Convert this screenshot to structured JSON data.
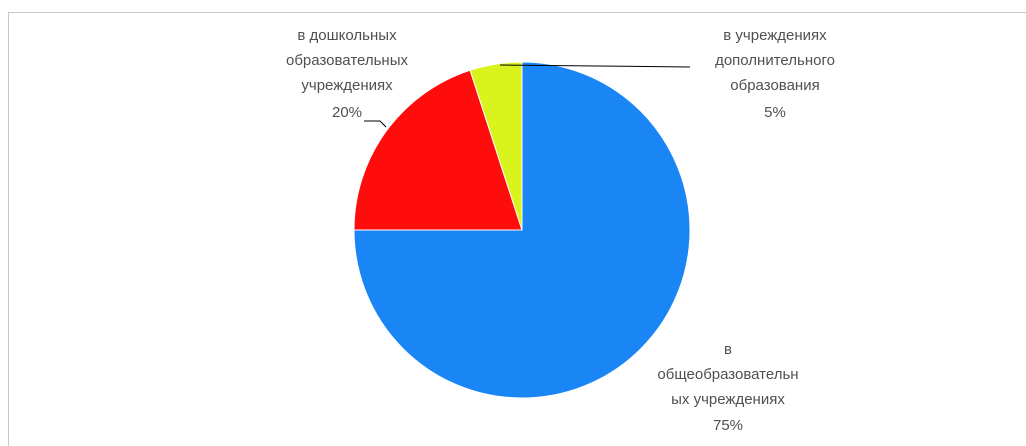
{
  "chart_data": {
    "type": "pie",
    "title": "",
    "slices": [
      {
        "label_lines": [
          "в",
          "общеобразовательн",
          "ых учреждениях"
        ],
        "pct_label": "75%",
        "value": 75,
        "color": "#1a86f6"
      },
      {
        "label_lines": [
          "в дошкольных",
          "образовательных",
          "учреждениях"
        ],
        "pct_label": "20%",
        "value": 20,
        "color": "#ff0d0d"
      },
      {
        "label_lines": [
          "в учреждениях",
          "дополнительного",
          "образования"
        ],
        "pct_label": "5%",
        "value": 5,
        "color": "#d9f41c"
      }
    ],
    "start_angle": "12 o'clock",
    "direction": "clockwise",
    "legend": "none"
  }
}
